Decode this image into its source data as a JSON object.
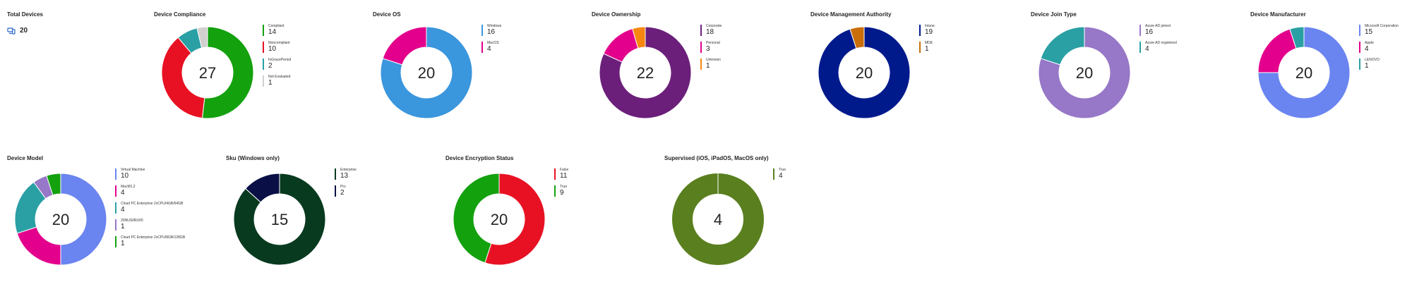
{
  "total_devices": {
    "title": "Total Devices",
    "value": "20",
    "icon": "devices-icon",
    "icon_color": "#2563c9"
  },
  "charts": [
    {
      "id": "compliance",
      "title": "Device Compliance",
      "total": "27",
      "slices": [
        {
          "label": "Compliant",
          "value": 14,
          "color": "#13a10e"
        },
        {
          "label": "Noncompliant",
          "value": 10,
          "color": "#e81123"
        },
        {
          "label": "InGracePeriod",
          "value": 2,
          "color": "#2aa0a4"
        },
        {
          "label": "Not Evaluated",
          "value": 1,
          "color": "#d2d0ce"
        }
      ]
    },
    {
      "id": "os",
      "title": "Device OS",
      "total": "20",
      "slices": [
        {
          "label": "Windows",
          "value": 16,
          "color": "#3a96dd"
        },
        {
          "label": "MacOS",
          "value": 4,
          "color": "#e3008c"
        }
      ]
    },
    {
      "id": "ownership",
      "title": "Device Ownership",
      "total": "22",
      "slices": [
        {
          "label": "Corporate",
          "value": 18,
          "color": "#6b1f7a"
        },
        {
          "label": "Personal",
          "value": 3,
          "color": "#e3008c"
        },
        {
          "label": "Unknown",
          "value": 1,
          "color": "#f7870f"
        }
      ]
    },
    {
      "id": "mgmt",
      "title": "Device Management Authority",
      "total": "20",
      "slices": [
        {
          "label": "Intune",
          "value": 19,
          "color": "#001a8c"
        },
        {
          "label": "MDE",
          "value": 1,
          "color": "#ca6e0a"
        }
      ]
    },
    {
      "id": "join",
      "title": "Device Join Type",
      "total": "20",
      "slices": [
        {
          "label": "Azure AD joined",
          "value": 16,
          "color": "#9777c7"
        },
        {
          "label": "Azure AD registered",
          "value": 4,
          "color": "#2aa0a4"
        }
      ]
    },
    {
      "id": "manufacturer",
      "title": "Device Manufacturer",
      "total": "20",
      "slices": [
        {
          "label": "Microsoft Corporation",
          "value": 15,
          "color": "#6a84f0"
        },
        {
          "label": "Apple",
          "value": 4,
          "color": "#e3008c"
        },
        {
          "label": "LENOVO",
          "value": 1,
          "color": "#2aa0a4"
        }
      ]
    },
    {
      "id": "model",
      "title": "Device Model",
      "total": "20",
      "slices": [
        {
          "label": "Virtual Machine",
          "value": 10,
          "color": "#6a84f0"
        },
        {
          "label": "MacM1,2",
          "value": 4,
          "color": "#e3008c"
        },
        {
          "label": "Cloud PC Enterprise 2vCPU/4GB/64GB",
          "value": 4,
          "color": "#2aa0a4"
        },
        {
          "label": "20NUS0RU00",
          "value": 1,
          "color": "#9777c7"
        },
        {
          "label": "Cloud PC Enterprise 2vCPU/8GB/128GB",
          "value": 1,
          "color": "#13a10e"
        }
      ]
    },
    {
      "id": "sku",
      "title": "Sku (Windows only)",
      "total": "15",
      "slices": [
        {
          "label": "Enterprise",
          "value": 13,
          "color": "#083a1f"
        },
        {
          "label": "Pro",
          "value": 2,
          "color": "#0a1045"
        }
      ]
    },
    {
      "id": "encryption",
      "title": "Device Encryption Status",
      "total": "20",
      "slices": [
        {
          "label": "False",
          "value": 11,
          "color": "#e81123"
        },
        {
          "label": "True",
          "value": 9,
          "color": "#13a10e"
        }
      ]
    },
    {
      "id": "supervised",
      "title": "Supervised (iOS, iPadOS, MacOS only)",
      "total": "4",
      "slices": [
        {
          "label": "True",
          "value": 4,
          "color": "#5a7f1f"
        }
      ]
    }
  ]
}
